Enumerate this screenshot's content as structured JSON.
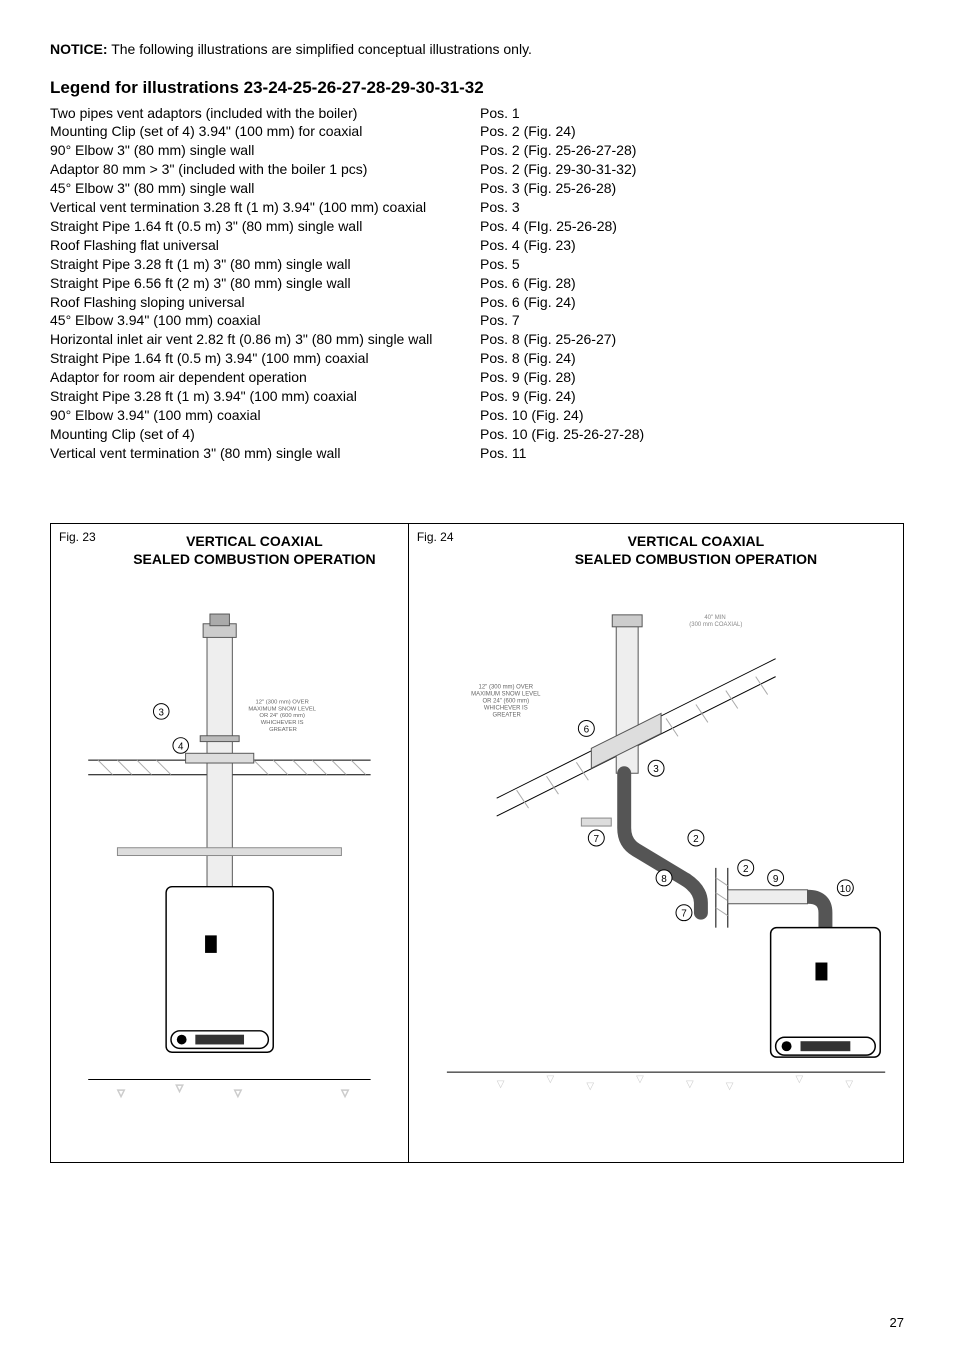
{
  "notice": {
    "label": "NOTICE:",
    "text": "The following illustrations are simplified conceptual illustrations only."
  },
  "legend": {
    "heading": "Legend for illustrations 23-24-25-26-27-28-29-30-31-32",
    "rows": [
      {
        "desc": "Two pipes vent adaptors (included with the boiler)",
        "pos": "Pos. 1"
      },
      {
        "desc": "Mounting Clip (set of 4) 3.94\" (100 mm) for coaxial",
        "pos": "Pos. 2 (Fig. 24)"
      },
      {
        "desc": "90° Elbow 3\" (80 mm) single wall",
        "pos": "Pos. 2 (Fig. 25-26-27-28)"
      },
      {
        "desc": "Adaptor 80 mm > 3\" (included with the boiler 1 pcs)",
        "pos": "Pos. 2 (Fig. 29-30-31-32)"
      },
      {
        "desc": "45° Elbow 3\" (80 mm) single wall",
        "pos": "Pos. 3 (Fig. 25-26-28)"
      },
      {
        "desc": "Vertical vent termination 3.28 ft (1 m) 3.94\" (100 mm) coaxial",
        "pos": "Pos. 3"
      },
      {
        "desc": "Straight Pipe 1.64 ft (0.5 m) 3\" (80 mm) single wall",
        "pos": "Pos. 4 (FIg. 25-26-28)"
      },
      {
        "desc": "Roof Flashing flat universal",
        "pos": "Pos. 4 (Fig. 23)"
      },
      {
        "desc": "Straight Pipe 3.28 ft (1 m) 3\" (80 mm) single wall",
        "pos": "Pos. 5"
      },
      {
        "desc": "Straight Pipe 6.56 ft (2 m) 3\" (80 mm) single wall",
        "pos": "Pos. 6 (Fig. 28)"
      },
      {
        "desc": "Roof Flashing sloping universal",
        "pos": "Pos. 6 (Fig. 24)"
      },
      {
        "desc": "45° Elbow 3.94\" (100 mm) coaxial",
        "pos": "Pos. 7"
      },
      {
        "desc": "Horizontal inlet air vent 2.82 ft (0.86 m) 3\" (80 mm) single wall",
        "pos": "Pos. 8 (Fig. 25-26-27)"
      },
      {
        "desc": "Straight Pipe 1.64 ft (0.5 m) 3.94\" (100 mm) coaxial",
        "pos": "Pos. 8 (Fig. 24)"
      },
      {
        "desc": "Adaptor for room air dependent operation",
        "pos": "Pos. 9 (Fig. 28)"
      },
      {
        "desc": "Straight Pipe 3.28 ft (1 m) 3.94\" (100 mm) coaxial",
        "pos": "Pos. 9 (Fig. 24)"
      },
      {
        "desc": "90° Elbow 3.94\" (100 mm) coaxial",
        "pos": "Pos. 10 (Fig. 24)"
      },
      {
        "desc": "Mounting Clip (set of 4)",
        "pos": "Pos. 10 (Fig. 25-26-27-28)"
      },
      {
        "desc": "Vertical vent termination 3\" (80 mm) single wall",
        "pos": "Pos. 11"
      }
    ]
  },
  "fig23": {
    "label": "Fig. 23",
    "title1": "VERTICAL COAXIAL",
    "title2": "SEALED COMBUSTION OPERATION",
    "snow_note": "12\" (300 mm) OVER\nMAXIMUM SNOW LEVEL\nOR 24\" (600 mm)\nWHICHEVER IS\nGREATER"
  },
  "fig24": {
    "label": "Fig. 24",
    "title1": "VERTICAL COAXIAL",
    "title2": "SEALED COMBUSTION OPERATION",
    "snow_note": "12\" (300 mm) OVER\nMAXIMUM SNOW LEVEL\nOR 24\" (600 mm)\nWHICHEVER IS\nGREATER",
    "top_note": "40\" MIN\n(300 mm COAXIAL)"
  },
  "page_number": "27",
  "colors": {
    "text": "#000000",
    "bg": "#ffffff",
    "light_gray": "#cccccc",
    "mid_gray": "#999999",
    "hatch": "#bbbbbb"
  }
}
